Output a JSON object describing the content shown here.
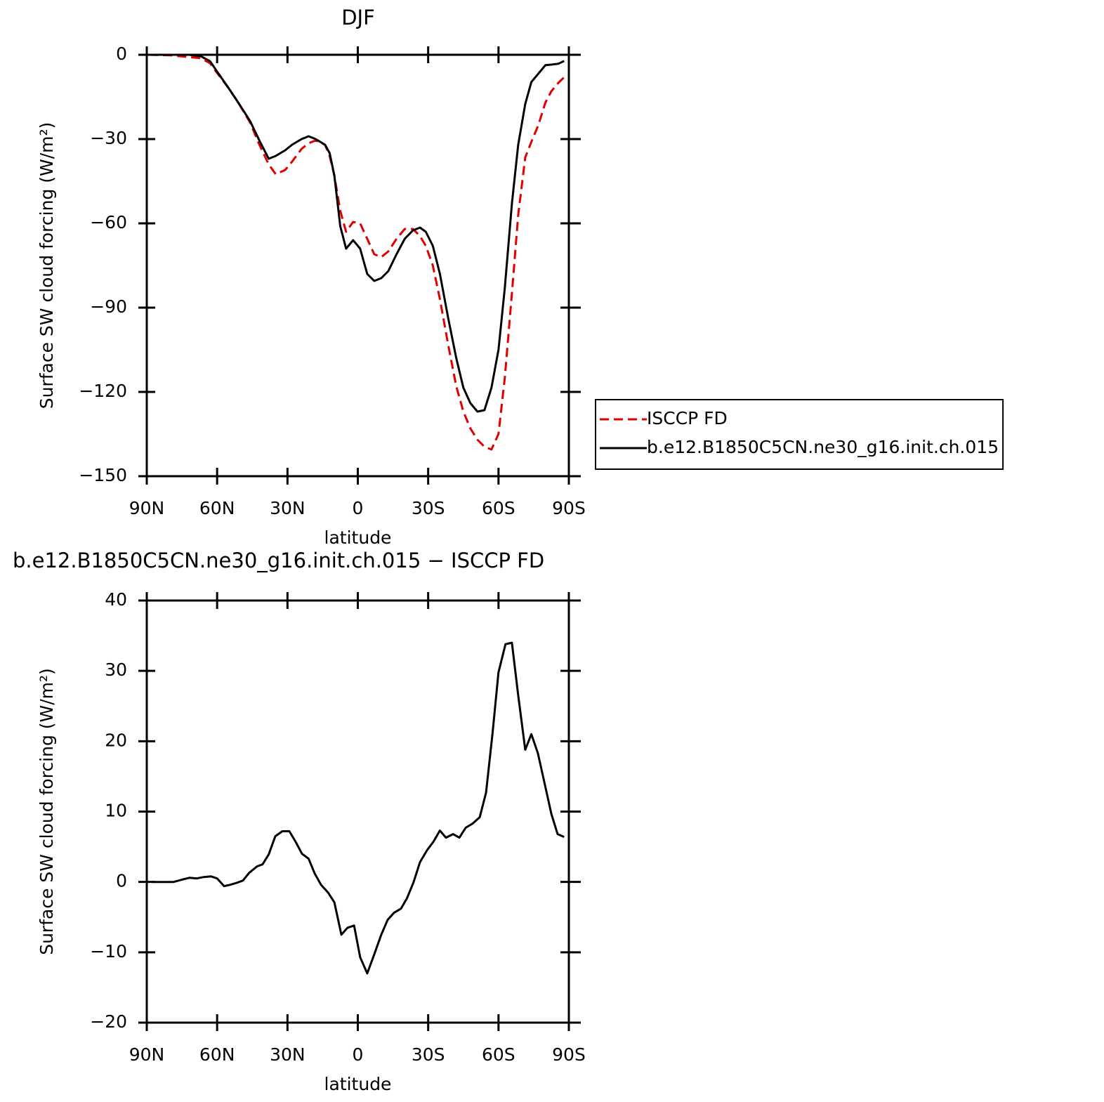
{
  "chart_data": [
    {
      "type": "line",
      "title": "DJF",
      "xlabel": "latitude",
      "ylabel": "Surface SW cloud forcing (W/m²)",
      "x": [
        89,
        80,
        72,
        67,
        63,
        60,
        55,
        51,
        46,
        42,
        38,
        35,
        31,
        28,
        24,
        21,
        18,
        14,
        12,
        10,
        7.5,
        5,
        2,
        -1,
        -4,
        -7,
        -10,
        -13,
        -16.5,
        -20,
        -23.5,
        -26.5,
        -29,
        -32,
        -35,
        -38.5,
        -42,
        -45,
        -48,
        -51,
        -54,
        -57,
        -60,
        -62.7,
        -65.7,
        -68.4,
        -71.4,
        -74,
        -77,
        -80,
        -82.5,
        -85.5,
        -88
      ],
      "series": [
        {
          "name": "ISCCP FD",
          "color": "#e00000",
          "dashed": true,
          "values": [
            0,
            -0.2,
            -0.8,
            -1.2,
            -3,
            -6.5,
            -12,
            -17,
            -24,
            -32,
            -39,
            -42.5,
            -41,
            -38,
            -33.5,
            -31.5,
            -30.5,
            -32,
            -36,
            -43,
            -55.5,
            -63,
            -59.5,
            -60,
            -65.5,
            -71,
            -72,
            -70,
            -65.5,
            -62,
            -62,
            -64.5,
            -68,
            -75,
            -87,
            -103,
            -118,
            -127,
            -133,
            -137,
            -139.5,
            -140.5,
            -135,
            -115,
            -85,
            -57,
            -36.5,
            -31,
            -25,
            -17,
            -13,
            -10,
            -8
          ]
        },
        {
          "name": "b.e12.B1850C5CN.ne30_g16.init.ch.015",
          "color": "#000000",
          "dashed": false,
          "values": [
            0,
            0,
            0,
            -0.5,
            -2.3,
            -6,
            -12,
            -17,
            -23.5,
            -30.5,
            -37,
            -36,
            -34,
            -32,
            -30,
            -29,
            -30,
            -32,
            -35,
            -43,
            -61,
            -69,
            -66,
            -69,
            -78,
            -80.5,
            -79.5,
            -77,
            -71,
            -65.5,
            -62.5,
            -61.5,
            -63,
            -68,
            -78,
            -93.5,
            -108,
            -118.5,
            -124,
            -127,
            -126.5,
            -118.5,
            -105,
            -83,
            -53,
            -32,
            -17.5,
            -9.7,
            -6.7,
            -3.7,
            -3.5,
            -3.2,
            -2.2
          ]
        }
      ],
      "xlim": [
        90,
        -90
      ],
      "xticks": [
        {
          "value": 90,
          "label": "90N"
        },
        {
          "value": 60,
          "label": "60N"
        },
        {
          "value": 30,
          "label": "30N"
        },
        0,
        {
          "value": -30,
          "label": "30S"
        },
        {
          "value": -60,
          "label": "60S"
        },
        {
          "value": -90,
          "label": "90S"
        }
      ],
      "ylim": [
        -150,
        0
      ],
      "yticks": [
        0,
        {
          "value": -30,
          "label": "−30"
        },
        {
          "value": -60,
          "label": "−60"
        },
        {
          "value": -90,
          "label": "−90"
        },
        {
          "value": -120,
          "label": "−120"
        },
        {
          "value": -150,
          "label": "−150"
        }
      ],
      "legend": "right"
    },
    {
      "type": "line",
      "title": "b.e12.B1850C5CN.ne30_g16.init.ch.015 − ISCCP FD",
      "xlabel": "latitude",
      "ylabel": "Surface SW cloud forcing (W/m²)",
      "x": [
        87.5,
        83,
        78.6,
        75.3,
        71.7,
        68.7,
        65.7,
        62.7,
        60,
        57,
        54.4,
        51.4,
        49,
        46.3,
        43,
        40.6,
        38,
        35.2,
        32.2,
        29.2,
        26.5,
        23.8,
        21,
        18.4,
        15.7,
        12.7,
        10,
        7,
        4.3,
        1.6,
        -1,
        -4,
        -7,
        -10,
        -12.7,
        -15.4,
        -18.4,
        -21,
        -23.8,
        -26.5,
        -29.5,
        -32.2,
        -35,
        -37.6,
        -40.6,
        -43.3,
        -46,
        -49,
        -52,
        -54.7,
        -57.4,
        -60,
        -63,
        -65.7,
        -68.4,
        -71.4,
        -74,
        -76.8,
        -80,
        -82.5,
        -85.2,
        -88
      ],
      "series": [
        {
          "color": "#000000",
          "dashed": false,
          "values": [
            0,
            0,
            0,
            0.3,
            0.6,
            0.5,
            0.7,
            0.8,
            0.5,
            -0.6,
            -0.4,
            -0.1,
            0.2,
            1.3,
            2.2,
            2.5,
            3.9,
            6.5,
            7.2,
            7.2,
            5.7,
            4,
            3.3,
            1.2,
            -0.4,
            -1.5,
            -2.9,
            -7.5,
            -6.5,
            -6.2,
            -10.7,
            -13,
            -10.3,
            -7.5,
            -5.4,
            -4.4,
            -3.8,
            -2.3,
            0,
            2.8,
            4.5,
            5.7,
            7.3,
            6.3,
            6.8,
            6.3,
            7.7,
            8.3,
            9.2,
            12.7,
            21,
            29.8,
            33.8,
            34,
            26.5,
            18.8,
            21,
            18.3,
            13.5,
            9.7,
            6.8,
            6.4
          ]
        }
      ],
      "xlim": [
        90,
        -90
      ],
      "xticks": [
        {
          "value": 90,
          "label": "90N"
        },
        {
          "value": 60,
          "label": "60N"
        },
        {
          "value": 30,
          "label": "30N"
        },
        0,
        {
          "value": -30,
          "label": "30S"
        },
        {
          "value": -60,
          "label": "60S"
        },
        {
          "value": -90,
          "label": "90S"
        }
      ],
      "ylim": [
        -20,
        40
      ],
      "yticks": [
        40,
        30,
        20,
        10,
        0,
        {
          "value": -10,
          "label": "−10"
        },
        {
          "value": -20,
          "label": "−20"
        }
      ]
    }
  ]
}
